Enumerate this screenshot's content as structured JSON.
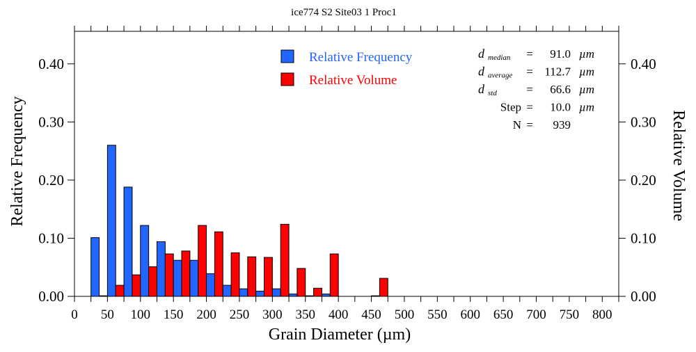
{
  "chart_data": {
    "type": "bar",
    "title": "ice774 S2 Site03 1 Proc1",
    "xlabel": "Grain Diameter (µm)",
    "ylabel": "Relative Frequency",
    "y2label": "Relative Volume",
    "xlim": [
      0,
      825
    ],
    "ylim": [
      0,
      0.456
    ],
    "xticks": [
      0,
      50,
      100,
      150,
      200,
      250,
      300,
      350,
      400,
      450,
      500,
      550,
      600,
      650,
      700,
      750,
      800
    ],
    "yticks": [
      "0.00",
      "0.10",
      "0.20",
      "0.30",
      "0.40"
    ],
    "ytick_values": [
      0,
      0.1,
      0.2,
      0.3,
      0.4
    ],
    "bin_width": 25,
    "x": [
      25,
      50,
      75,
      100,
      125,
      150,
      175,
      200,
      225,
      250,
      275,
      300,
      325,
      350,
      375,
      400,
      425,
      450
    ],
    "series": [
      {
        "name": "Relative Frequency",
        "color": "#2266ff",
        "values": [
          0.101,
          0.26,
          0.188,
          0.122,
          0.094,
          0.062,
          0.062,
          0.039,
          0.019,
          0.013,
          0.009,
          0.013,
          0.004,
          0.001,
          0.004,
          0,
          0,
          0.001
        ]
      },
      {
        "name": "Relative Volume",
        "color": "#ff0000",
        "values": [
          0.001,
          0.019,
          0.037,
          0.051,
          0.073,
          0.078,
          0.122,
          0.111,
          0.075,
          0.068,
          0.067,
          0.124,
          0.048,
          0.014,
          0.073,
          0,
          0,
          0.031
        ]
      }
    ],
    "legend_position": "top-center",
    "stats": [
      {
        "label": "d",
        "sub": "median",
        "eq": "=",
        "value": "91.0",
        "unit": "µm"
      },
      {
        "label": "d",
        "sub": "average",
        "eq": "=",
        "value": "112.7",
        "unit": "µm"
      },
      {
        "label": "d",
        "sub": "std",
        "eq": "=",
        "value": "66.6",
        "unit": "µm"
      },
      {
        "label": "Step",
        "sub": "",
        "eq": "=",
        "value": "10.0",
        "unit": "µm"
      },
      {
        "label": "N",
        "sub": "",
        "eq": "=",
        "value": "939",
        "unit": ""
      }
    ]
  }
}
